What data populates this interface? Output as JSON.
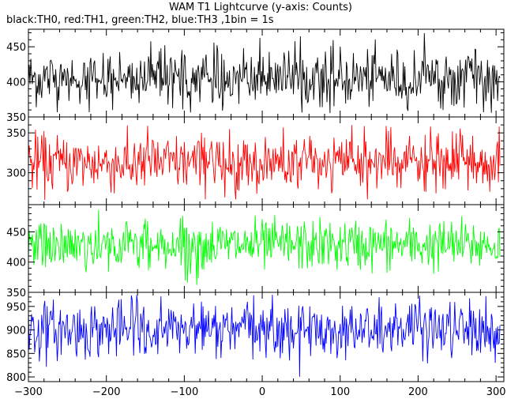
{
  "chart_data": {
    "type": "line",
    "title": "WAM T1 Lightcurve (y-axis: Counts)",
    "subtitle": "black:TH0, red:TH1, green:TH2, blue:TH3 ,1bin = 1s",
    "xlim": [
      -300,
      310
    ],
    "xticks": [
      "−300",
      "−200",
      "−100",
      "0",
      "100",
      "200",
      "300"
    ],
    "xtick_values": [
      -300,
      -200,
      -100,
      0,
      100,
      200,
      300
    ],
    "bin_seconds": 1,
    "series": [
      {
        "name": "TH0",
        "color": "#000000",
        "ylim": [
          350,
          475
        ],
        "yticks": [
          350,
          400,
          450
        ],
        "mean": 405,
        "sigma": 20,
        "value_range": [
          355,
          472
        ]
      },
      {
        "name": "TH1",
        "color": "#ff0000",
        "ylim": [
          260,
          370
        ],
        "yticks": [
          300,
          350
        ],
        "mean": 312,
        "sigma": 18,
        "value_range": [
          265,
          360
        ]
      },
      {
        "name": "TH2",
        "color": "#00ff00",
        "ylim": [
          350,
          495
        ],
        "yticks": [
          350,
          400,
          450
        ],
        "mean": 428,
        "sigma": 21,
        "value_range": [
          360,
          490
        ]
      },
      {
        "name": "TH3",
        "color": "#0000ff",
        "ylim": [
          790,
          980
        ],
        "yticks": [
          800,
          850,
          900,
          950
        ],
        "mean": 900,
        "sigma": 30,
        "value_range": [
          795,
          975
        ]
      }
    ]
  }
}
